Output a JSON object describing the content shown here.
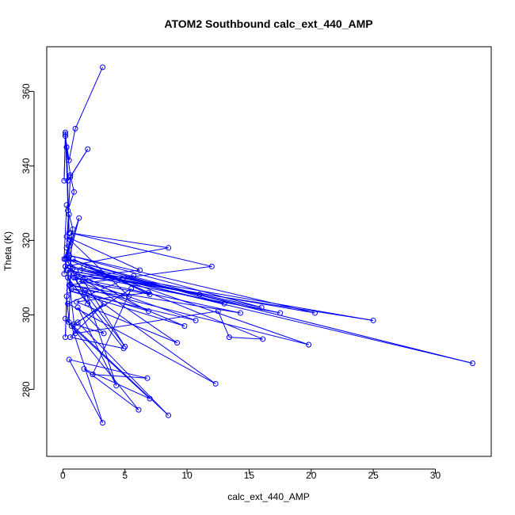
{
  "chart_data": {
    "type": "line",
    "title": "ATOM2 Southbound calc_ext_440_AMP",
    "xlabel": "calc_ext_440_AMP",
    "ylabel": "Theta (K)",
    "xlim": [
      -1.3,
      34.5
    ],
    "ylim": [
      262,
      372
    ],
    "xticks": [
      0,
      5,
      10,
      15,
      20,
      25,
      30
    ],
    "yticks": [
      280,
      300,
      320,
      340,
      360
    ],
    "grid": false,
    "legend": "none",
    "markers": "open-circle",
    "colors": {
      "series": "#0000ff",
      "axis": "#000000"
    },
    "series": [
      {
        "x": [
          3.2,
          1.0,
          0.5,
          0.2,
          0.1,
          0.2,
          0.3,
          0.6,
          0.9,
          0.4,
          0.3,
          0.5,
          0.2,
          0.4,
          2.0,
          0.6,
          0.3,
          0.5,
          0.8,
          0.2,
          1.3,
          0.4,
          0.6,
          0.1,
          0.5,
          0.2,
          8.5,
          0.6,
          12.0,
          0.5,
          0.8,
          13.0,
          0.4,
          11.0,
          0.3,
          20.3,
          0.5,
          16.0,
          0.6,
          17.5,
          0.9,
          25.0,
          1.4,
          33.0,
          1.7,
          19.8,
          0.6,
          14.3,
          1.0,
          10.7,
          0.5,
          9.8,
          1.3,
          7.0,
          0.8,
          6.9,
          1.1,
          9.2,
          0.2,
          6.9,
          0.7,
          5.3,
          0.3,
          6.2,
          0.9,
          5.0,
          1.6,
          5.7,
          0.4,
          12.3,
          1.8,
          4.3,
          1.2,
          3.3,
          0.9,
          5.5,
          2.4,
          6.8,
          0.5,
          3.2,
          0.7,
          7.0,
          1.7,
          6.1,
          0.2,
          8.5,
          1.2,
          3.3,
          0.6,
          4.9,
          0.4,
          2.0,
          0.3,
          16.1,
          13.4,
          12.5,
          1.0,
          0.4,
          0.2,
          0.3,
          0.5,
          0.7,
          0.1,
          0.3
        ],
        "y": [
          366.5,
          350.0,
          341.5,
          348.0,
          336.0,
          348.5,
          345.0,
          337.5,
          333.0,
          328.0,
          345.0,
          322.0,
          349.0,
          336.0,
          344.5,
          337.0,
          318.0,
          327.0,
          323.0,
          315.0,
          326.0,
          314.0,
          320.0,
          311.0,
          318.5,
          313.0,
          318.0,
          322.0,
          313.0,
          308.0,
          312.5,
          303.0,
          315.0,
          305.5,
          312.0,
          300.5,
          316.0,
          302.0,
          313.0,
          300.5,
          311.0,
          298.5,
          312.0,
          287.0,
          313.0,
          292.0,
          308.0,
          300.5,
          310.0,
          298.5,
          306.5,
          297.0,
          309.0,
          305.5,
          315.0,
          306.0,
          303.5,
          292.5,
          313.0,
          301.0,
          307.0,
          305.0,
          321.0,
          312.0,
          310.0,
          291.5,
          309.5,
          310.5,
          303.0,
          281.5,
          306.5,
          281.0,
          302.0,
          295.0,
          297.5,
          307.0,
          284.0,
          283.0,
          288.0,
          271.0,
          297.0,
          277.5,
          285.5,
          274.5,
          299.0,
          273.0,
          298.0,
          303.0,
          294.0,
          291.0,
          310.0,
          303.0,
          315.0,
          293.5,
          294.0,
          301.0,
          295.0,
          312.0,
          294.0,
          305.0,
          298.0,
          321.0,
          315.0,
          329.5
        ]
      }
    ]
  }
}
